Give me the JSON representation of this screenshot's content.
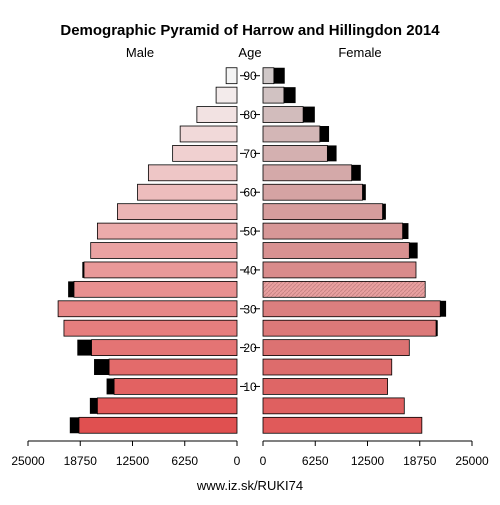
{
  "chart_data": {
    "type": "bar",
    "title": "Demographic Pyramid of Harrow and Hillingdon 2014",
    "left_label": "Male",
    "center_label": "Age",
    "right_label": "Female",
    "age_tick_labels": [
      "10",
      "20",
      "30",
      "40",
      "50",
      "60",
      "70",
      "80",
      "90"
    ],
    "x_tick_labels_left": [
      "25000",
      "18750",
      "12500",
      "6250",
      "0"
    ],
    "x_tick_labels_right": [
      "0",
      "6250",
      "12500",
      "18750",
      "25000"
    ],
    "xlim": [
      0,
      25000
    ],
    "age_groups": [
      "0-4",
      "5-9",
      "10-14",
      "15-19",
      "20-24",
      "25-29",
      "30-34",
      "35-39",
      "40-44",
      "45-49",
      "50-54",
      "55-59",
      "60-64",
      "65-69",
      "70-74",
      "75-79",
      "80-84",
      "85-89",
      "90+"
    ],
    "series": [
      {
        "name": "Male",
        "values": [
          18900,
          16700,
          14700,
          15300,
          17400,
          20700,
          21400,
          19500,
          18300,
          17500,
          16700,
          14300,
          11900,
          10600,
          7700,
          6800,
          4800,
          2500,
          1300
        ],
        "excess": [
          1100,
          900,
          900,
          1800,
          1700,
          0,
          0,
          700,
          200,
          0,
          0,
          0,
          0,
          0,
          0,
          0,
          0,
          0,
          0
        ]
      },
      {
        "name": "Female",
        "values": [
          19000,
          16900,
          14900,
          15400,
          17500,
          20700,
          21200,
          19400,
          18300,
          17500,
          16700,
          14300,
          11900,
          10600,
          7700,
          6800,
          4800,
          2500,
          1300
        ],
        "excess": [
          0,
          0,
          0,
          0,
          0,
          200,
          700,
          0,
          0,
          1000,
          700,
          400,
          400,
          1100,
          1100,
          1100,
          1400,
          1400,
          1300
        ]
      }
    ],
    "colors": {
      "male_young": "#e05050",
      "male_old": "#f4f4f4",
      "female_young": "#e05a5a",
      "female_old": "#d0c8c8",
      "excess": "#000000"
    },
    "hatched_age_group": "35-39"
  },
  "footer": {
    "url": "www.iz.sk/RUKI74"
  }
}
